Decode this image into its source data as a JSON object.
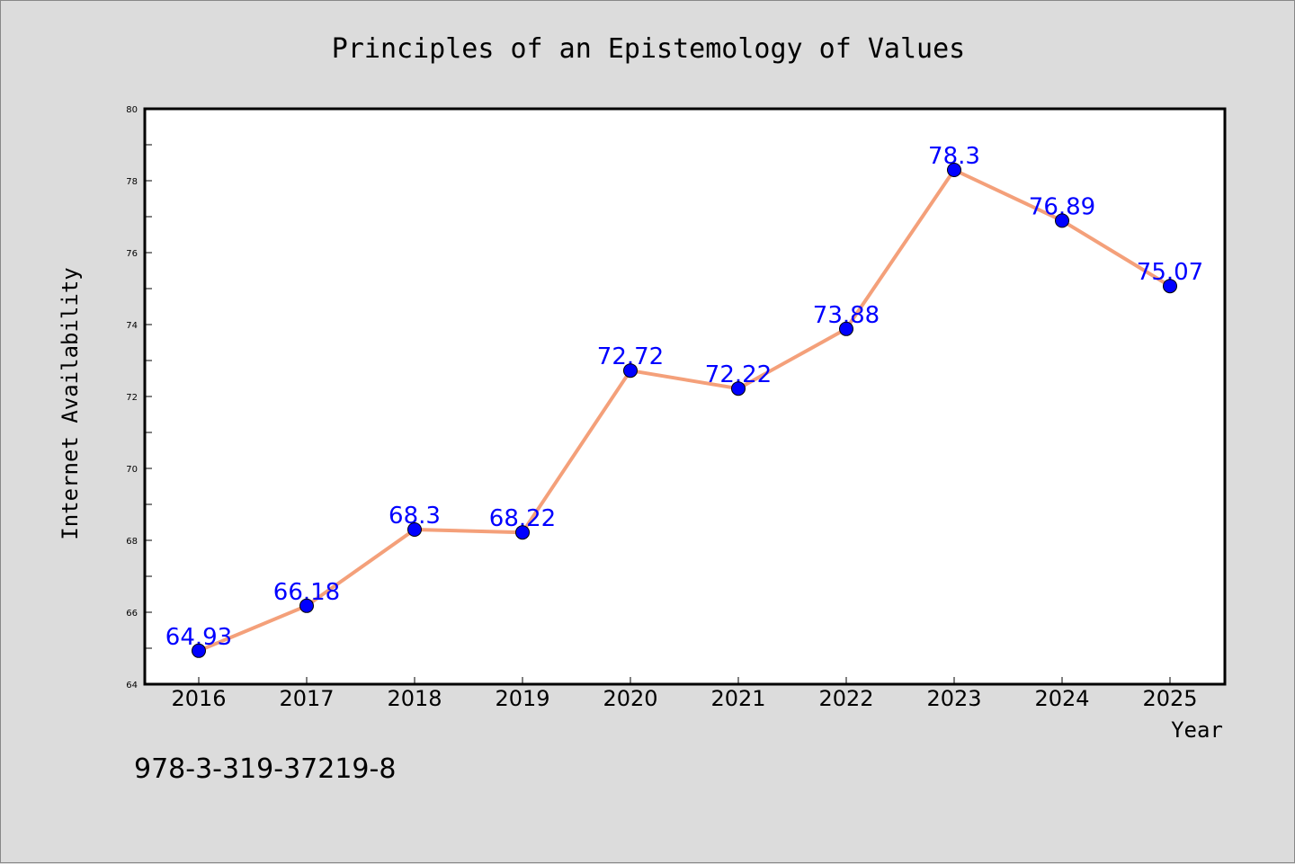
{
  "chart_data": {
    "type": "line",
    "title": "Principles of an Epistemology of Values",
    "xlabel": "Year",
    "ylabel": "Internet Availability",
    "x": [
      "2016",
      "2017",
      "2018",
      "2019",
      "2020",
      "2021",
      "2022",
      "2023",
      "2024",
      "2025"
    ],
    "series": [
      {
        "values": [
          64.93,
          66.18,
          68.3,
          68.22,
          72.72,
          72.22,
          73.88,
          78.3,
          76.89,
          75.07
        ],
        "labels": [
          "64.93",
          "66.18",
          "68.3",
          "68.22",
          "72.72",
          "72.22",
          "73.88",
          "78.3",
          "76.89",
          "75.07"
        ],
        "line_color": "#f4a07a",
        "marker_color": "#0000ff"
      }
    ],
    "ylim": [
      64,
      80
    ],
    "yticks": [
      "64",
      "66",
      "68",
      "70",
      "72",
      "74",
      "76",
      "78",
      "80"
    ],
    "grid": false,
    "legend": "none"
  },
  "footer": {
    "isbn": "978-3-319-37219-8"
  },
  "colors": {
    "background": "#dcdcdc",
    "plot_background": "#ffffff",
    "line": "#f4a07a",
    "marker": "#0000ff",
    "data_label": "#0000ff"
  }
}
